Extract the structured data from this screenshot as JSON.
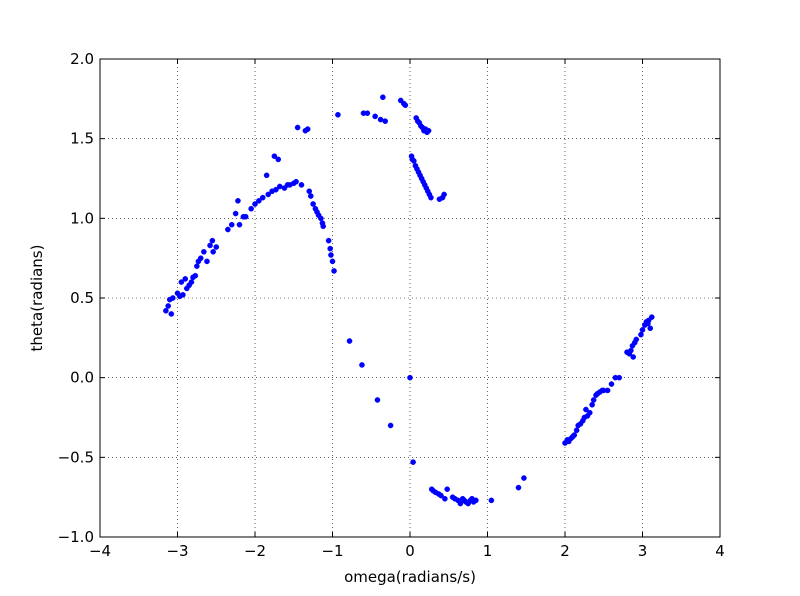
{
  "chart_data": {
    "type": "scatter",
    "xlabel": "omega(radians/s)",
    "ylabel": "theta(radians)",
    "xlim": [
      -4,
      4
    ],
    "ylim": [
      -1.0,
      2.0
    ],
    "x_ticks": [
      -4,
      -3,
      -2,
      -1,
      0,
      1,
      2,
      3,
      4
    ],
    "y_ticks": [
      -1.0,
      -0.5,
      0.0,
      0.5,
      1.0,
      1.5,
      2.0
    ],
    "x_tick_labels": [
      "−4",
      "−3",
      "−2",
      "−1",
      "0",
      "1",
      "2",
      "3",
      "4"
    ],
    "y_tick_labels": [
      "−1.0",
      "−0.5",
      "0.0",
      "0.5",
      "1.0",
      "1.5",
      "2.0"
    ],
    "grid": true,
    "marker_color": "#0000ff",
    "series": [
      {
        "points": [
          [
            -3.15,
            0.42
          ],
          [
            -3.12,
            0.45
          ],
          [
            -3.1,
            0.49
          ],
          [
            -3.08,
            0.4
          ],
          [
            -3.06,
            0.5
          ],
          [
            -3.0,
            0.53
          ],
          [
            -2.97,
            0.51
          ],
          [
            -2.95,
            0.6
          ],
          [
            -2.93,
            0.52
          ],
          [
            -2.9,
            0.62
          ],
          [
            -2.88,
            0.56
          ],
          [
            -2.85,
            0.58
          ],
          [
            -2.82,
            0.6
          ],
          [
            -2.8,
            0.63
          ],
          [
            -2.77,
            0.64
          ],
          [
            -2.75,
            0.7
          ],
          [
            -2.73,
            0.73
          ],
          [
            -2.7,
            0.75
          ],
          [
            -2.66,
            0.79
          ],
          [
            -2.62,
            0.73
          ],
          [
            -2.58,
            0.83
          ],
          [
            -2.55,
            0.86
          ],
          [
            -2.54,
            0.79
          ],
          [
            -2.5,
            0.82
          ],
          [
            -2.35,
            0.93
          ],
          [
            -2.3,
            0.96
          ],
          [
            -2.25,
            1.03
          ],
          [
            -2.22,
            1.11
          ],
          [
            -2.2,
            0.96
          ],
          [
            -2.15,
            1.01
          ],
          [
            -2.12,
            1.01
          ],
          [
            -2.05,
            1.06
          ],
          [
            -2.0,
            1.09
          ],
          [
            -1.95,
            1.11
          ],
          [
            -1.9,
            1.13
          ],
          [
            -1.85,
            1.27
          ],
          [
            -1.83,
            1.15
          ],
          [
            -1.78,
            1.17
          ],
          [
            -1.75,
            1.39
          ],
          [
            -1.73,
            1.18
          ],
          [
            -1.7,
            1.37
          ],
          [
            -1.68,
            1.2
          ],
          [
            -1.62,
            1.19
          ],
          [
            -1.58,
            1.21
          ],
          [
            -1.55,
            1.21
          ],
          [
            -1.5,
            1.22
          ],
          [
            -1.47,
            1.23
          ],
          [
            -1.45,
            1.57
          ],
          [
            -1.4,
            1.21
          ],
          [
            -1.35,
            1.55
          ],
          [
            -1.32,
            1.56
          ],
          [
            -1.3,
            1.17
          ],
          [
            -1.28,
            1.14
          ],
          [
            -1.25,
            1.09
          ],
          [
            -1.22,
            1.06
          ],
          [
            -1.2,
            1.04
          ],
          [
            -1.18,
            1.02
          ],
          [
            -1.15,
            1.0
          ],
          [
            -1.13,
            0.97
          ],
          [
            -1.12,
            0.95
          ],
          [
            -1.05,
            0.86
          ],
          [
            -1.03,
            0.81
          ],
          [
            -1.02,
            0.77
          ],
          [
            -1.0,
            0.73
          ],
          [
            -0.98,
            0.67
          ],
          [
            -0.93,
            1.65
          ],
          [
            -0.78,
            0.23
          ],
          [
            -0.62,
            0.08
          ],
          [
            -0.6,
            1.66
          ],
          [
            -0.55,
            1.66
          ],
          [
            -0.45,
            1.64
          ],
          [
            -0.42,
            -0.14
          ],
          [
            -0.38,
            1.62
          ],
          [
            -0.35,
            1.76
          ],
          [
            -0.32,
            1.61
          ],
          [
            -0.25,
            -0.3
          ],
          [
            -0.12,
            1.74
          ],
          [
            -0.08,
            1.72
          ],
          [
            -0.06,
            1.71
          ],
          [
            0.0,
            0.0
          ],
          [
            0.02,
            1.39
          ],
          [
            0.03,
            1.37
          ],
          [
            0.04,
            -0.53
          ],
          [
            0.05,
            1.36
          ],
          [
            0.07,
            1.33
          ],
          [
            0.08,
            1.63
          ],
          [
            0.09,
            1.31
          ],
          [
            0.1,
            1.61
          ],
          [
            0.11,
            1.29
          ],
          [
            0.12,
            1.6
          ],
          [
            0.13,
            1.27
          ],
          [
            0.14,
            1.58
          ],
          [
            0.15,
            1.25
          ],
          [
            0.16,
            1.57
          ],
          [
            0.17,
            1.23
          ],
          [
            0.18,
            1.55
          ],
          [
            0.19,
            1.21
          ],
          [
            0.2,
            1.56
          ],
          [
            0.21,
            1.19
          ],
          [
            0.22,
            1.54
          ],
          [
            0.23,
            1.17
          ],
          [
            0.24,
            1.55
          ],
          [
            0.25,
            1.15
          ],
          [
            0.27,
            1.13
          ],
          [
            0.28,
            -0.7
          ],
          [
            0.3,
            -0.71
          ],
          [
            0.33,
            -0.72
          ],
          [
            0.37,
            -0.73
          ],
          [
            0.38,
            1.12
          ],
          [
            0.4,
            -0.74
          ],
          [
            0.42,
            1.13
          ],
          [
            0.44,
            1.15
          ],
          [
            0.45,
            -0.76
          ],
          [
            0.48,
            -0.7
          ],
          [
            0.55,
            -0.75
          ],
          [
            0.58,
            -0.76
          ],
          [
            0.62,
            -0.77
          ],
          [
            0.65,
            -0.79
          ],
          [
            0.68,
            -0.76
          ],
          [
            0.7,
            -0.77
          ],
          [
            0.72,
            -0.78
          ],
          [
            0.75,
            -0.79
          ],
          [
            0.78,
            -0.77
          ],
          [
            0.8,
            -0.76
          ],
          [
            0.82,
            -0.78
          ],
          [
            0.85,
            -0.77
          ],
          [
            1.05,
            -0.77
          ],
          [
            1.4,
            -0.69
          ],
          [
            1.47,
            -0.63
          ],
          [
            2.0,
            -0.41
          ],
          [
            2.03,
            -0.39
          ],
          [
            2.05,
            -0.4
          ],
          [
            2.08,
            -0.38
          ],
          [
            2.1,
            -0.37
          ],
          [
            2.12,
            -0.36
          ],
          [
            2.15,
            -0.33
          ],
          [
            2.17,
            -0.3
          ],
          [
            2.2,
            -0.29
          ],
          [
            2.23,
            -0.27
          ],
          [
            2.25,
            -0.25
          ],
          [
            2.27,
            -0.2
          ],
          [
            2.29,
            -0.24
          ],
          [
            2.32,
            -0.22
          ],
          [
            2.35,
            -0.17
          ],
          [
            2.37,
            -0.14
          ],
          [
            2.4,
            -0.11
          ],
          [
            2.42,
            -0.1
          ],
          [
            2.45,
            -0.09
          ],
          [
            2.48,
            -0.08
          ],
          [
            2.5,
            -0.08
          ],
          [
            2.55,
            -0.08
          ],
          [
            2.6,
            -0.04
          ],
          [
            2.65,
            0.0
          ],
          [
            2.7,
            0.0
          ],
          [
            2.8,
            0.16
          ],
          [
            2.83,
            0.15
          ],
          [
            2.85,
            0.17
          ],
          [
            2.87,
            0.2
          ],
          [
            2.88,
            0.13
          ],
          [
            2.9,
            0.22
          ],
          [
            2.92,
            0.24
          ],
          [
            2.98,
            0.27
          ],
          [
            3.0,
            0.3
          ],
          [
            3.03,
            0.33
          ],
          [
            3.05,
            0.35
          ],
          [
            3.07,
            0.34
          ],
          [
            3.08,
            0.36
          ],
          [
            3.1,
            0.31
          ],
          [
            3.12,
            0.38
          ]
        ]
      }
    ]
  }
}
